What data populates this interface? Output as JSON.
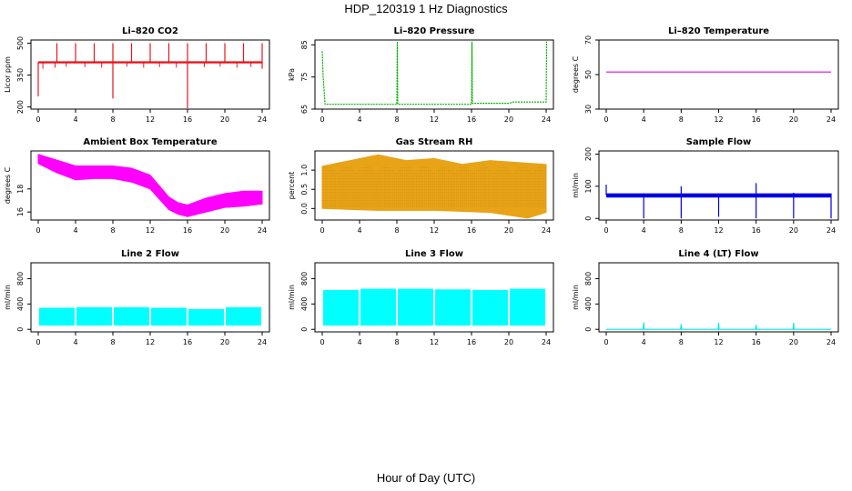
{
  "figure": {
    "title": "HDP_120319 1 Hz Diagnostics",
    "xlabel": "Hour of Day (UTC)"
  },
  "chart_data": [
    {
      "type": "line",
      "title": "Li–820 CO2",
      "xlabel": "",
      "ylabel": "Licor ppm",
      "color": "#e8141c",
      "xlim": [
        0,
        24
      ],
      "xticks": [
        0,
        4,
        8,
        12,
        16,
        20,
        24
      ],
      "ylim": [
        190,
        515
      ],
      "yticks": [
        200,
        350,
        500
      ],
      "baseline": 410,
      "band": [
        405,
        415
      ],
      "spikes_up": [
        [
          2,
          500
        ],
        [
          4,
          500
        ],
        [
          6,
          500
        ],
        [
          8,
          500
        ],
        [
          10,
          500
        ],
        [
          12,
          500
        ],
        [
          14,
          500
        ],
        [
          16,
          500
        ],
        [
          18,
          500
        ],
        [
          20,
          500
        ],
        [
          22,
          500
        ],
        [
          24,
          500
        ]
      ],
      "spikes_down": [
        [
          0,
          250
        ],
        [
          8,
          240
        ],
        [
          16,
          190
        ],
        [
          24,
          380
        ]
      ],
      "dips": [
        [
          0.5,
          380
        ],
        [
          1.8,
          385
        ],
        [
          3,
          390
        ],
        [
          5,
          388
        ],
        [
          6.8,
          385
        ],
        [
          9.5,
          390
        ],
        [
          11.3,
          385
        ],
        [
          13,
          388
        ],
        [
          14.8,
          385
        ],
        [
          17.8,
          388
        ],
        [
          19.5,
          390
        ],
        [
          21.3,
          385
        ],
        [
          22.8,
          388
        ]
      ]
    },
    {
      "type": "line",
      "title": "Li–820 Pressure",
      "xlabel": "",
      "ylabel": "kPa",
      "color": "#00b000",
      "xlim": [
        0,
        24
      ],
      "xticks": [
        0,
        4,
        8,
        12,
        16,
        20,
        24
      ],
      "ylim": [
        65,
        86.5
      ],
      "yticks": [
        65,
        75,
        85
      ],
      "points": [
        [
          0,
          83
        ],
        [
          0.1,
          75
        ],
        [
          0.3,
          66.5
        ],
        [
          8,
          66.5
        ],
        [
          8.05,
          86
        ],
        [
          8.1,
          66.5
        ],
        [
          16,
          66.5
        ],
        [
          16.05,
          86
        ],
        [
          16.1,
          66.8
        ],
        [
          20,
          66.8
        ],
        [
          20.5,
          67.2
        ],
        [
          24,
          67.2
        ],
        [
          24.05,
          86
        ]
      ]
    },
    {
      "type": "line",
      "title": "Li–820 Temperature",
      "xlabel": "",
      "ylabel": "degrees C",
      "color": "#e000e0",
      "xlim": [
        0,
        24
      ],
      "xticks": [
        0,
        4,
        8,
        12,
        16,
        20,
        24
      ],
      "ylim": [
        30,
        70
      ],
      "yticks": [
        30,
        50,
        70
      ],
      "points": [
        [
          0,
          51.5
        ],
        [
          24,
          51.5
        ]
      ]
    },
    {
      "type": "area",
      "title": "Ambient Box Temperature",
      "xlabel": "",
      "ylabel": "degrees C",
      "color": "#ff00ff",
      "xlim": [
        0,
        24
      ],
      "xticks": [
        0,
        4,
        8,
        12,
        16,
        20,
        24
      ],
      "ylim": [
        15.3,
        21.3
      ],
      "yticks": [
        16,
        18
      ],
      "upper": [
        [
          0,
          21.0
        ],
        [
          2,
          20.5
        ],
        [
          4,
          20.0
        ],
        [
          6,
          20.0
        ],
        [
          8,
          20.0
        ],
        [
          10,
          19.8
        ],
        [
          12,
          19.2
        ],
        [
          14,
          17.3
        ],
        [
          15,
          16.8
        ],
        [
          16,
          16.6
        ],
        [
          18,
          17.2
        ],
        [
          20,
          17.6
        ],
        [
          22,
          17.8
        ],
        [
          24,
          17.8
        ]
      ],
      "lower": [
        [
          0,
          20.2
        ],
        [
          2,
          19.4
        ],
        [
          4,
          18.8
        ],
        [
          6,
          18.9
        ],
        [
          8,
          18.9
        ],
        [
          10,
          18.6
        ],
        [
          12,
          18.0
        ],
        [
          14,
          16.2
        ],
        [
          15,
          15.8
        ],
        [
          16,
          15.6
        ],
        [
          18,
          16.0
        ],
        [
          20,
          16.4
        ],
        [
          22,
          16.5
        ],
        [
          24,
          16.7
        ]
      ]
    },
    {
      "type": "area",
      "title": "Gas Stream RH",
      "xlabel": "",
      "ylabel": "percent",
      "color": "#e8a317",
      "xlim": [
        0,
        24
      ],
      "xticks": [
        0,
        4,
        8,
        12,
        16,
        20,
        24
      ],
      "ylim": [
        -0.3,
        1.5
      ],
      "yticks": [
        0.0,
        0.5,
        1.0
      ],
      "upper": [
        [
          0,
          1.1
        ],
        [
          3,
          1.25
        ],
        [
          6,
          1.4
        ],
        [
          9,
          1.25
        ],
        [
          12,
          1.3
        ],
        [
          15,
          1.15
        ],
        [
          18,
          1.25
        ],
        [
          21,
          1.2
        ],
        [
          24,
          1.15
        ]
      ],
      "lower": [
        [
          0,
          0.0
        ],
        [
          6,
          -0.05
        ],
        [
          12,
          -0.05
        ],
        [
          18,
          -0.1
        ],
        [
          22,
          -0.25
        ],
        [
          24,
          -0.1
        ]
      ]
    },
    {
      "type": "line",
      "title": "Sample Flow",
      "xlabel": "",
      "ylabel": "ml/min",
      "color": "#0000e0",
      "xlim": [
        0,
        24
      ],
      "xticks": [
        0,
        4,
        8,
        12,
        16,
        20,
        24
      ],
      "ylim": [
        -5,
        210
      ],
      "yticks": [
        0,
        100,
        200
      ],
      "baseline": 72,
      "band": [
        65,
        78
      ],
      "spikes_up": [
        [
          0,
          105
        ],
        [
          4,
          78
        ],
        [
          8,
          100
        ],
        [
          12,
          78
        ],
        [
          16,
          110
        ],
        [
          20,
          80
        ],
        [
          24,
          78
        ]
      ],
      "spikes_down": [
        [
          4,
          0
        ],
        [
          8,
          0
        ],
        [
          12,
          5
        ],
        [
          16,
          0
        ],
        [
          20,
          0
        ],
        [
          24,
          0
        ]
      ]
    },
    {
      "type": "bar",
      "title": "Line 2 Flow",
      "xlabel": "",
      "ylabel": "ml/min",
      "color": "#00ffff",
      "xlim": [
        0,
        24
      ],
      "xticks": [
        0,
        4,
        8,
        12,
        16,
        20,
        24
      ],
      "ylim": [
        -40,
        1050
      ],
      "yticks": [
        0,
        400,
        800
      ],
      "blocks": [
        [
          0.1,
          3.9,
          60,
          340
        ],
        [
          4.1,
          7.9,
          60,
          350
        ],
        [
          8.1,
          11.9,
          60,
          350
        ],
        [
          12.1,
          15.9,
          60,
          340
        ],
        [
          16.1,
          19.9,
          60,
          320
        ],
        [
          20.1,
          23.9,
          60,
          350
        ]
      ]
    },
    {
      "type": "bar",
      "title": "Line 3 Flow",
      "xlabel": "",
      "ylabel": "ml/min",
      "color": "#00ffff",
      "xlim": [
        0,
        24
      ],
      "xticks": [
        0,
        4,
        8,
        12,
        16,
        20,
        24
      ],
      "ylim": [
        -40,
        1050
      ],
      "yticks": [
        0,
        400,
        800
      ],
      "blocks": [
        [
          0.1,
          3.9,
          60,
          620
        ],
        [
          4.1,
          7.9,
          60,
          640
        ],
        [
          8.1,
          11.9,
          60,
          640
        ],
        [
          12.1,
          15.9,
          60,
          630
        ],
        [
          16.1,
          19.9,
          60,
          620
        ],
        [
          20.1,
          23.9,
          60,
          640
        ]
      ]
    },
    {
      "type": "line",
      "title": "Line 4 (LT) Flow",
      "xlabel": "",
      "ylabel": "ml/min",
      "color": "#00e8e8",
      "xlim": [
        0,
        24
      ],
      "xticks": [
        0,
        4,
        8,
        12,
        16,
        20,
        24
      ],
      "ylim": [
        -40,
        1050
      ],
      "yticks": [
        0,
        400,
        800
      ],
      "points": [
        [
          0,
          0
        ],
        [
          3.95,
          0
        ],
        [
          4,
          110
        ],
        [
          4.05,
          0
        ],
        [
          7.95,
          0
        ],
        [
          8,
          80
        ],
        [
          8.05,
          0
        ],
        [
          11.95,
          0
        ],
        [
          12,
          100
        ],
        [
          12.05,
          0
        ],
        [
          15.95,
          0
        ],
        [
          16,
          70
        ],
        [
          16.05,
          0
        ],
        [
          19.95,
          0
        ],
        [
          20,
          100
        ],
        [
          20.05,
          0
        ],
        [
          24,
          0
        ]
      ]
    }
  ]
}
